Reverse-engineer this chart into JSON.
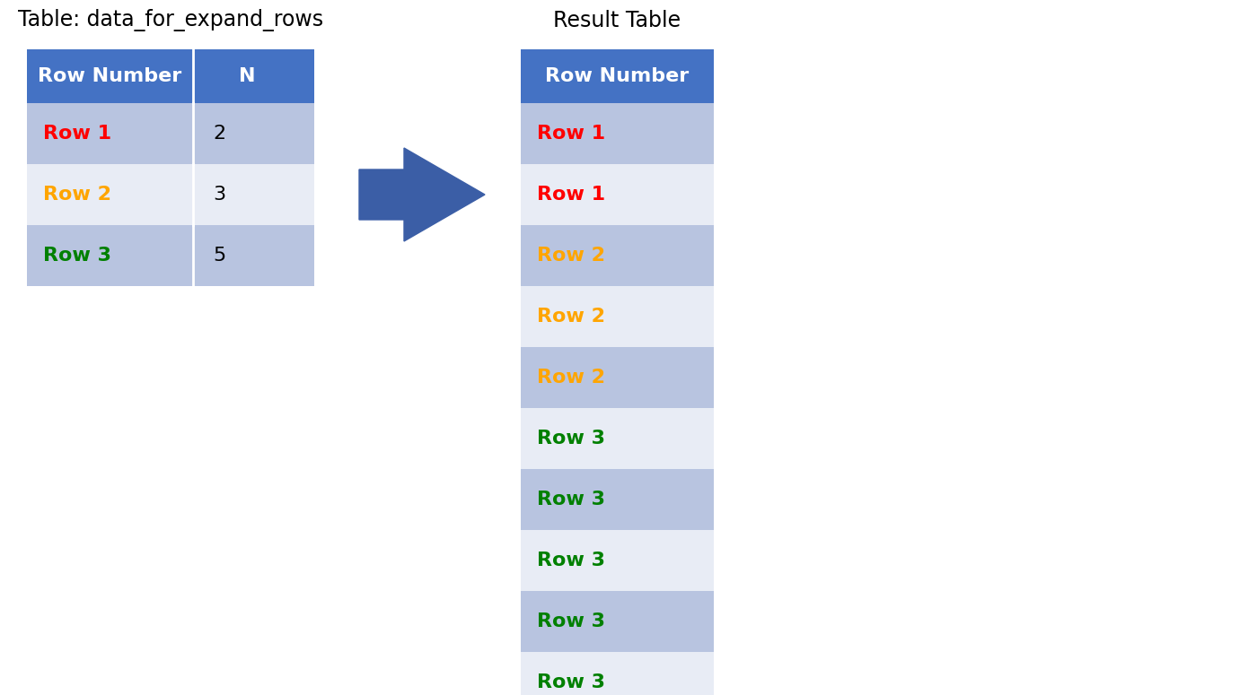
{
  "title_left": "Table: data_for_expand_rows",
  "title_right": "Result Table",
  "header_color": "#4472C4",
  "header_text_color": "#FFFFFF",
  "row_color_dark": "#B8C4E0",
  "row_color_light": "#E8ECF5",
  "left_table_headers": [
    "Row Number",
    "N"
  ],
  "left_table_data": [
    [
      "Row 1",
      "2"
    ],
    [
      "Row 2",
      "3"
    ],
    [
      "Row 3",
      "5"
    ]
  ],
  "left_row_colors": [
    "#FF0000",
    "#FFA500",
    "#008000"
  ],
  "right_table_header": "Row Number",
  "right_table_data": [
    "Row 1",
    "Row 1",
    "Row 2",
    "Row 2",
    "Row 2",
    "Row 3",
    "Row 3",
    "Row 3",
    "Row 3",
    "Row 3"
  ],
  "right_row_text_colors": [
    "#FF0000",
    "#FF0000",
    "#FFA500",
    "#FFA500",
    "#FFA500",
    "#008000",
    "#008000",
    "#008000",
    "#008000",
    "#008000"
  ],
  "arrow_color": "#3B5EA6",
  "background_color": "#FFFFFF",
  "title_fontsize": 17,
  "header_fontsize": 16,
  "cell_fontsize": 16
}
